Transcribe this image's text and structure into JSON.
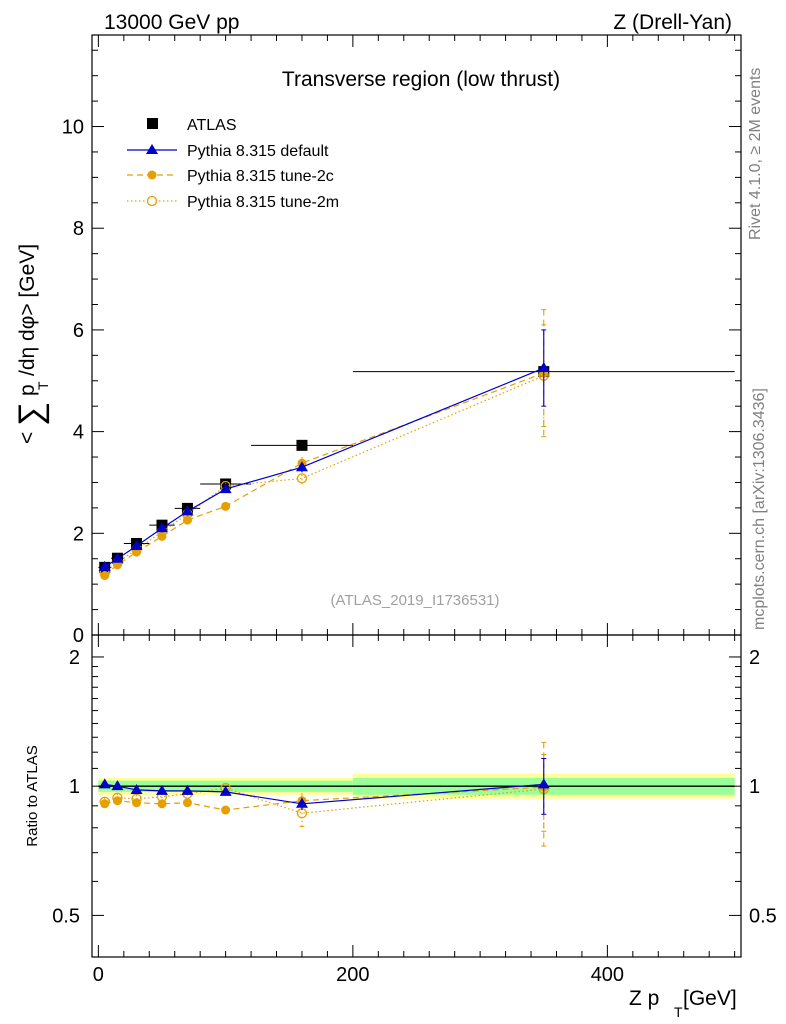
{
  "header": {
    "energy": "13000 GeV pp",
    "process": "Z (Drell-Yan)"
  },
  "side_labels": {
    "rivet": "Rivet 4.1.0, ≥ 2M events",
    "mcplots": "mcplots.cern.ch [arXiv:1306.3436]"
  },
  "chart_data": [
    {
      "type": "scatter",
      "panel": "main",
      "title": "Transverse region (low thrust)",
      "analysis": "(ATLAS_2019_I1736531)",
      "ylabel": "< ∑ p_T /dη dφ> [GeV]",
      "ylabel_parts": {
        "open": "<",
        "sum": "∑",
        "pt": "p",
        "sub": "T",
        "rest": "/dη dφ> [GeV]"
      },
      "xlim": [
        -5,
        505
      ],
      "ylim": [
        0,
        11.8
      ],
      "yticks": [
        0,
        2,
        4,
        6,
        8,
        10
      ],
      "ytick_labels": [
        "0",
        "2",
        "4",
        "6",
        "8",
        "10"
      ],
      "legend": {
        "position": "top-left",
        "entries": [
          "ATLAS",
          "Pythia 8.315 default",
          "Pythia 8.315 tune-2c",
          "Pythia 8.315 tune-2m"
        ]
      },
      "series": [
        {
          "name": "ATLAS",
          "color": "#000000",
          "marker": "square",
          "x": [
            5,
            15,
            30,
            50,
            70,
            100,
            160,
            350
          ],
          "y": [
            1.33,
            1.51,
            1.8,
            2.16,
            2.49,
            2.97,
            3.73,
            5.18
          ],
          "xerr": [
            5,
            5,
            10,
            10,
            10,
            20,
            40,
            150
          ]
        },
        {
          "name": "Pythia 8.315 default",
          "color": "#0000cc",
          "marker": "triangle",
          "line": "solid",
          "x": [
            5,
            15,
            30,
            50,
            70,
            100,
            160,
            350
          ],
          "y": [
            1.34,
            1.5,
            1.75,
            2.1,
            2.43,
            2.87,
            3.3,
            5.25
          ],
          "yerr": [
            0.03,
            0.03,
            0.03,
            0.04,
            0.05,
            0.06,
            0.1,
            0.75
          ]
        },
        {
          "name": "Pythia 8.315 tune-2c",
          "color": "#e69f00",
          "marker": "circle",
          "line": "dashed",
          "x": [
            5,
            15,
            30,
            50,
            70,
            100,
            160,
            350
          ],
          "y": [
            1.17,
            1.38,
            1.63,
            1.94,
            2.26,
            2.53,
            3.38,
            5.15
          ],
          "yerr": [
            0.03,
            0.03,
            0.03,
            0.04,
            0.05,
            0.06,
            0.12,
            1.25
          ]
        },
        {
          "name": "Pythia 8.315 tune-2m",
          "color": "#e69f00",
          "marker": "open-circle",
          "line": "dotted",
          "x": [
            5,
            15,
            30,
            50,
            70,
            100,
            160,
            350
          ],
          "y": [
            1.22,
            1.43,
            1.68,
            2.03,
            2.38,
            2.93,
            3.08,
            5.1
          ],
          "yerr": [
            0.03,
            0.03,
            0.03,
            0.04,
            0.05,
            0.06,
            0.15,
            1.0
          ]
        }
      ]
    },
    {
      "type": "scatter",
      "panel": "ratio",
      "ylabel": "Ratio to ATLAS",
      "xlabel": "Z p_T [GeV]",
      "xlabel_parts": {
        "main": "Z p",
        "sub": "T",
        "rest": " [GeV]"
      },
      "xlim": [
        -5,
        505
      ],
      "ylim": [
        0.4,
        2.25
      ],
      "log_y": true,
      "yticks": [
        0.5,
        1,
        2
      ],
      "ytick_labels": [
        "0.5",
        "1",
        "2"
      ],
      "xticks": [
        0,
        200,
        400
      ],
      "xtick_labels": [
        "0",
        "200",
        "400"
      ],
      "bands": [
        {
          "x0": 0,
          "x1": 200,
          "inner": [
            0.97,
            1.03
          ],
          "outer": [
            0.955,
            1.045
          ]
        },
        {
          "x0": 200,
          "x1": 500,
          "inner": [
            0.955,
            1.045
          ],
          "outer": [
            0.935,
            1.07
          ]
        }
      ],
      "series": [
        {
          "name": "Pythia 8.315 default",
          "color": "#0000cc",
          "marker": "triangle",
          "line": "solid",
          "x": [
            5,
            15,
            30,
            50,
            70,
            100,
            160,
            350
          ],
          "y": [
            1.01,
            1.0,
            0.98,
            0.975,
            0.975,
            0.97,
            0.91,
            1.01
          ],
          "yerr": [
            0.02,
            0.02,
            0.02,
            0.02,
            0.02,
            0.02,
            0.03,
            0.15
          ]
        },
        {
          "name": "Pythia 8.315 tune-2c",
          "color": "#e69f00",
          "marker": "circle",
          "line": "dashed",
          "x": [
            5,
            15,
            30,
            50,
            70,
            100,
            160,
            350
          ],
          "y": [
            0.91,
            0.925,
            0.915,
            0.91,
            0.915,
            0.88,
            0.925,
            0.995
          ],
          "yerr": [
            0.02,
            0.02,
            0.02,
            0.02,
            0.02,
            0.02,
            0.04,
            0.27
          ]
        },
        {
          "name": "Pythia 8.315 tune-2m",
          "color": "#e69f00",
          "marker": "open-circle",
          "line": "dotted",
          "x": [
            5,
            15,
            30,
            50,
            70,
            100,
            160,
            350
          ],
          "y": [
            0.92,
            0.94,
            0.935,
            0.945,
            0.96,
            0.99,
            0.865,
            0.985
          ],
          "yerr": [
            0.02,
            0.02,
            0.02,
            0.02,
            0.02,
            0.02,
            0.06,
            0.2
          ]
        }
      ]
    }
  ]
}
